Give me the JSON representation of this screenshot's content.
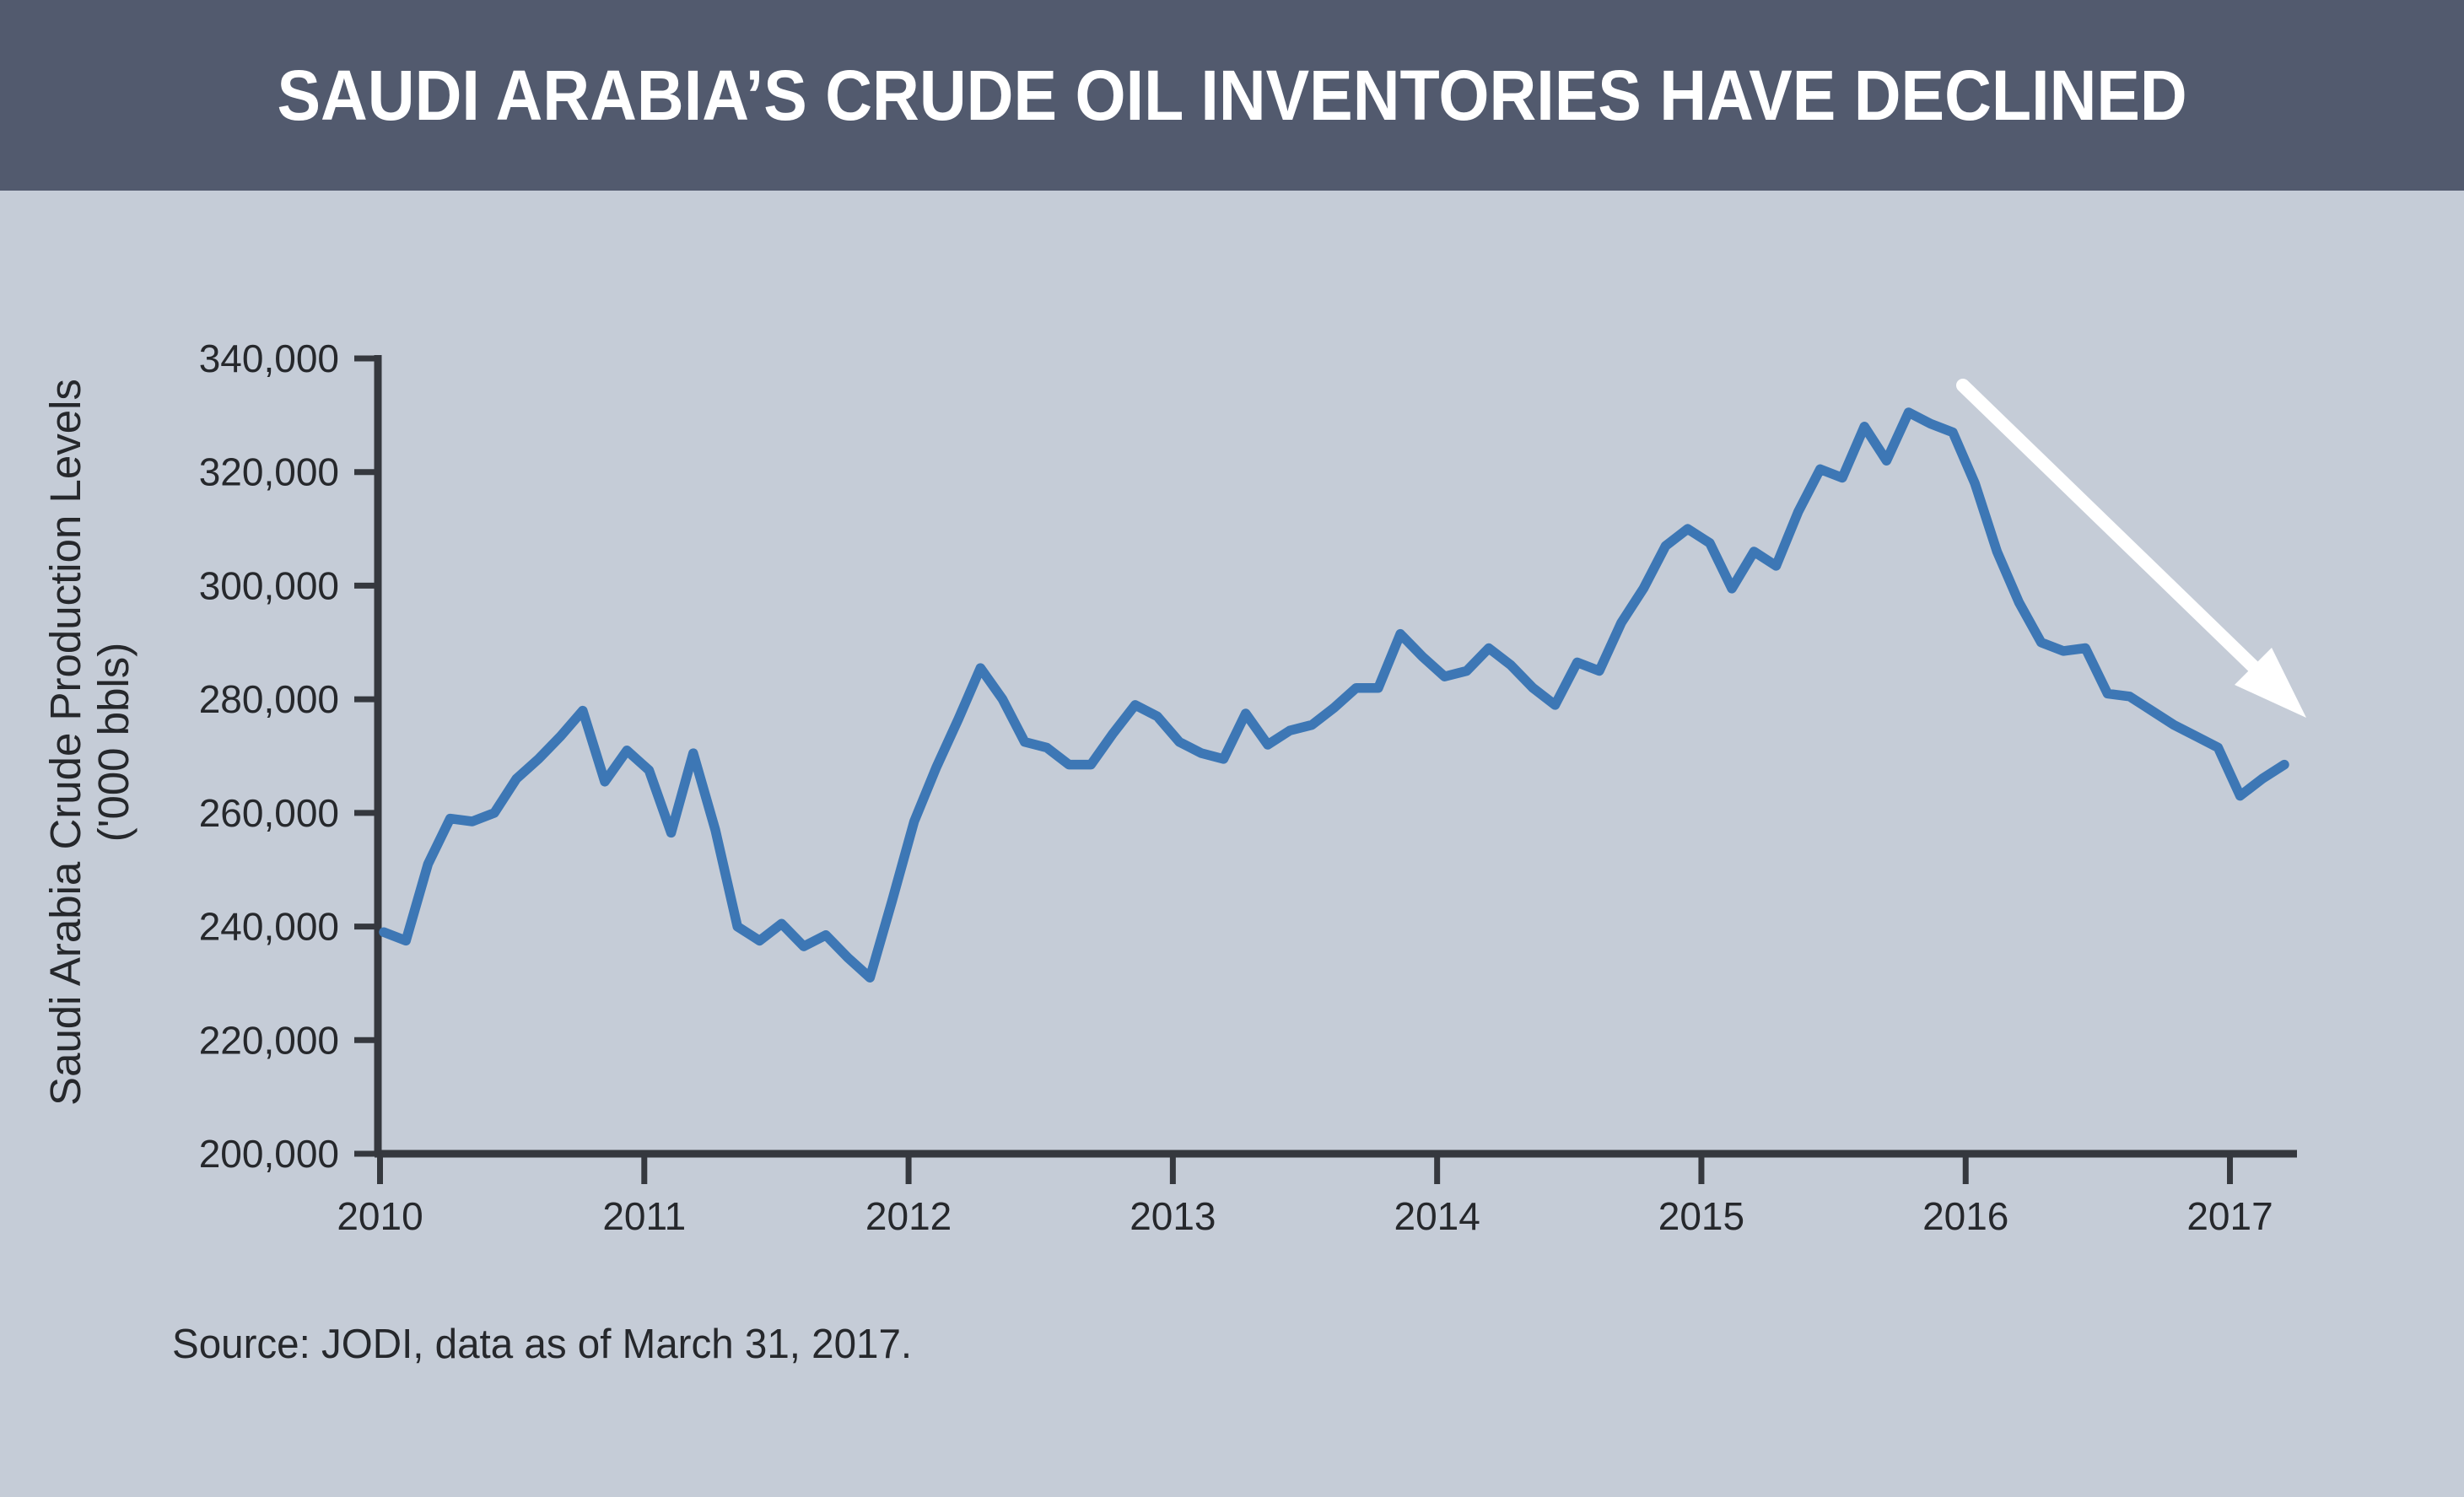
{
  "header": {
    "title": "SAUDI ARABIA’S CRUDE OIL INVENTORIES HAVE DECLINED"
  },
  "source_note": "Source: JODI, data as of March 31, 2017.",
  "colors": {
    "titlebar_background": "#525a6e",
    "title_text": "#ffffff",
    "page_background": "#c5ccd7",
    "line": "#3d77b5",
    "axis": "#35383e",
    "label_text": "#26282c",
    "annotation_arrow": "#ffffff"
  },
  "chart_data": {
    "type": "line",
    "title": "SAUDI ARABIA’S CRUDE OIL INVENTORIES HAVE DECLINED",
    "xlabel": "",
    "ylabel": "Saudi Arabia Crude Production Levels ('000 bbls)",
    "y_axis": {
      "title_line1": "Saudi Arabia Crude Production Levels",
      "title_line2": "('000 bbls)",
      "range": [
        200000,
        340000
      ],
      "ticks": [
        340000,
        320000,
        300000,
        280000,
        260000,
        240000,
        220000,
        200000
      ],
      "tick_labels": [
        "340,000",
        "320,000",
        "300,000",
        "280,000",
        "260,000",
        "240,000",
        "220,000",
        "200,000"
      ]
    },
    "x_axis": {
      "tick_labels": [
        "2010",
        "2011",
        "2012",
        "2013",
        "2014",
        "2015",
        "2016",
        "2017"
      ],
      "start_month": "2010-01",
      "end_month": "2017-03"
    },
    "grid": "off",
    "legend": "none",
    "series": [
      {
        "name": "Saudi Arabia crude oil inventories ('000 bbls, monthly)",
        "values": [
          239000,
          237500,
          251000,
          259000,
          258500,
          260000,
          266000,
          269500,
          273500,
          278000,
          265500,
          271000,
          267500,
          256500,
          270500,
          257000,
          240000,
          237500,
          240500,
          236500,
          238500,
          234500,
          231000,
          244500,
          258500,
          268000,
          276500,
          285500,
          280000,
          272500,
          271500,
          268500,
          268500,
          274000,
          279000,
          277000,
          272500,
          270500,
          269500,
          277500,
          272000,
          274500,
          275500,
          278500,
          282000,
          282000,
          291500,
          287500,
          284000,
          285000,
          289000,
          286000,
          282000,
          279000,
          286500,
          285000,
          293500,
          299500,
          307000,
          310000,
          307500,
          299500,
          306000,
          303500,
          313000,
          320500,
          319000,
          328000,
          322000,
          330500,
          328500,
          327000,
          318000,
          306000,
          297000,
          290000,
          288500,
          289000,
          281000,
          280500,
          278000,
          275500,
          273500,
          271500,
          263000,
          266000,
          268500
        ]
      }
    ],
    "annotation": {
      "type": "arrow",
      "direction": "down-right",
      "meaning": "inventories declining",
      "color": "#ffffff"
    }
  }
}
